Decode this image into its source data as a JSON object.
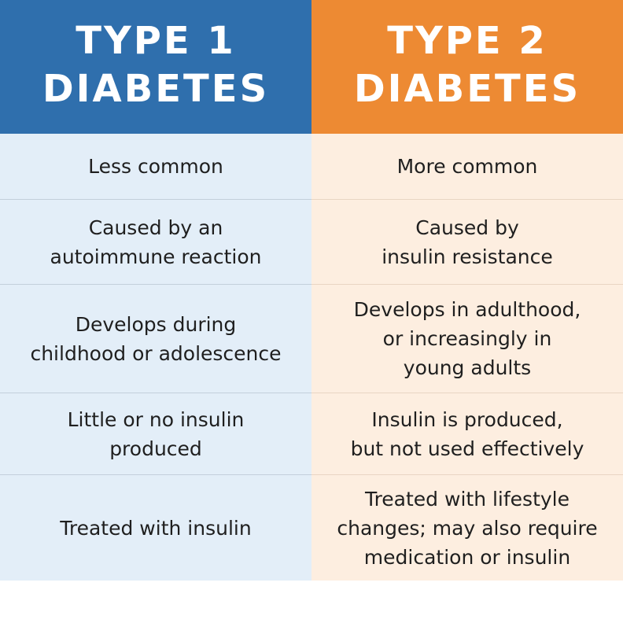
{
  "header": {
    "type1": [
      "TYPE 1",
      "DIABETES"
    ],
    "type2": [
      "TYPE 2",
      "DIABETES"
    ]
  },
  "rows": [
    {
      "type1": "Less common",
      "type2": "More common"
    },
    {
      "type1": "Caused by an\nautoimmune reaction",
      "type2": "Caused by\ninsulin resistance"
    },
    {
      "type1": "Develops during\nchildhood or adolescence",
      "type2": "Develops in adulthood,\nor increasingly in\nyoung adults"
    },
    {
      "type1": "Little or no insulin\nproduced",
      "type2": "Insulin is produced,\nbut not used effectively"
    },
    {
      "type1": "Treated with insulin",
      "type2": "Treated with lifestyle\nchanges; may also require\nmedication or insulin"
    }
  ],
  "colors": {
    "type1_header": "#2f6fad",
    "type2_header": "#ed8a33",
    "type1_cell": "#e3eef8",
    "type2_cell": "#fdeee0"
  }
}
